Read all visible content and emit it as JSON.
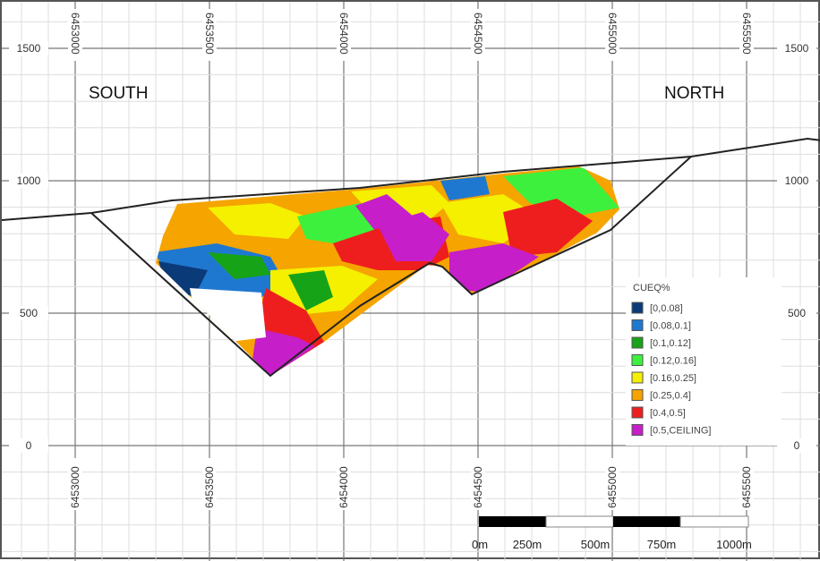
{
  "section": {
    "south_label": "SOUTH",
    "north_label": "NORTH",
    "elevation_ticks": [
      "1500",
      "1000",
      "500",
      "0"
    ],
    "northing_ticks": [
      "6453000",
      "6453500",
      "6454000",
      "6454500",
      "6455000",
      "6455500"
    ]
  },
  "legend": {
    "title": "CUEQ%",
    "items": [
      {
        "label": "[0,0.08]",
        "color": "#0b3a78"
      },
      {
        "label": "[0.08,0.1]",
        "color": "#1f78d0"
      },
      {
        "label": "[0.1,0.12]",
        "color": "#17a317"
      },
      {
        "label": "[0.12,0.16]",
        "color": "#3ef03e"
      },
      {
        "label": "[0.16,0.25]",
        "color": "#f4f000"
      },
      {
        "label": "[0.25,0.4]",
        "color": "#f5a400"
      },
      {
        "label": "[0.4,0.5]",
        "color": "#ee1e1e"
      },
      {
        "label": "[0.5,CEILING]",
        "color": "#c61ec8"
      }
    ]
  },
  "scale_bar": {
    "labels": [
      "0m",
      "250m",
      "500m",
      "750m",
      "1000m"
    ]
  }
}
